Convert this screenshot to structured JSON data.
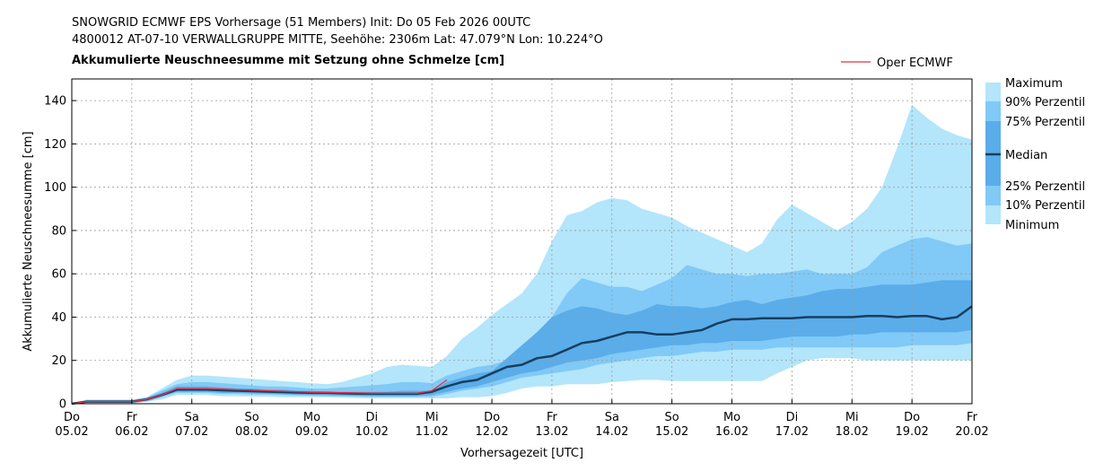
{
  "header": {
    "line1": "SNOWGRID ECMWF EPS Vorhersage (51 Members) Init: Do 05 Feb 2026 00UTC",
    "line2": "4800012 AT-07-10 VERWALLGRUPPE MITTE, Seehöhe: 2306m Lat: 47.079°N Lon: 10.224°O",
    "title": "Akkumulierte Neuschneesumme mit Setzung ohne Schmelze [cm]"
  },
  "colors": {
    "minmax": "#b3e5fb",
    "p10_90": "#81c9f6",
    "p25_75": "#5aade9",
    "median": "#173e5f",
    "oper": "#e8303c"
  },
  "legend": {
    "oper": "Oper ECMWF",
    "maximum": "Maximum",
    "p90": "90% Perzentil",
    "p75": "75% Perzentil",
    "median": "Median",
    "p25": "25% Perzentil",
    "p10": "10% Perzentil",
    "minimum": "Minimum"
  },
  "chart_data": {
    "type": "area",
    "title": "Akkumulierte Neuschneesumme mit Setzung ohne Schmelze [cm]",
    "xlabel": "Vorhersagezeit [UTC]",
    "ylabel": "Akkumulierte Neuschneesumme [cm]",
    "xlim": [
      0,
      15
    ],
    "ylim": [
      0,
      150
    ],
    "grid": true,
    "yticks": [
      0,
      20,
      40,
      60,
      80,
      100,
      120,
      140
    ],
    "xticks": [
      {
        "day": "Do",
        "date": "05.02"
      },
      {
        "day": "Fr",
        "date": "06.02"
      },
      {
        "day": "Sa",
        "date": "07.02"
      },
      {
        "day": "So",
        "date": "08.02"
      },
      {
        "day": "Mo",
        "date": "09.02"
      },
      {
        "day": "Di",
        "date": "10.02"
      },
      {
        "day": "Mi",
        "date": "11.02"
      },
      {
        "day": "Do",
        "date": "12.02"
      },
      {
        "day": "Fr",
        "date": "13.02"
      },
      {
        "day": "Sa",
        "date": "14.02"
      },
      {
        "day": "So",
        "date": "15.02"
      },
      {
        "day": "Mo",
        "date": "16.02"
      },
      {
        "day": "Di",
        "date": "17.02"
      },
      {
        "day": "Mi",
        "date": "18.02"
      },
      {
        "day": "Do",
        "date": "19.02"
      },
      {
        "day": "Fr",
        "date": "20.02"
      }
    ],
    "x_days": [
      0,
      0.25,
      0.5,
      0.75,
      1,
      1.25,
      1.5,
      1.75,
      2,
      2.25,
      2.5,
      2.75,
      3,
      3.25,
      3.5,
      3.75,
      4,
      4.25,
      4.5,
      4.75,
      5,
      5.25,
      5.5,
      5.75,
      6,
      6.25,
      6.5,
      6.75,
      7,
      7.25,
      7.5,
      7.75,
      8,
      8.25,
      8.5,
      8.75,
      9,
      9.25,
      9.5,
      9.75,
      10,
      10.25,
      10.5,
      10.75,
      11,
      11.25,
      11.5,
      11.75,
      12,
      12.25,
      12.5,
      12.75,
      13,
      13.25,
      13.5,
      13.75,
      14,
      14.25,
      14.5,
      14.75,
      15
    ],
    "series": [
      {
        "name": "Maximum",
        "values": [
          0,
          2,
          2,
          2,
          2,
          3,
          7,
          11,
          13,
          13,
          12.5,
          12,
          11.5,
          11,
          10.5,
          10,
          9.5,
          9,
          10,
          12,
          14,
          17,
          18,
          17.5,
          17,
          22,
          30,
          35,
          41,
          46,
          51,
          60,
          75,
          87,
          89,
          93,
          95,
          94,
          90,
          88,
          86,
          82,
          79,
          76,
          73,
          70,
          74,
          85,
          92,
          88,
          84,
          80,
          84,
          90,
          100,
          118,
          138,
          132,
          127,
          124,
          122
        ]
      },
      {
        "name": "90% Perzentil",
        "values": [
          0,
          1.5,
          1.5,
          1.5,
          1.5,
          3,
          6,
          9,
          10,
          10,
          9.5,
          9,
          8.5,
          8,
          8,
          7.5,
          7,
          7,
          7.5,
          8,
          8.5,
          9,
          10,
          10,
          9.5,
          13,
          15,
          17,
          18,
          20,
          25,
          32,
          40,
          51,
          58,
          56,
          54,
          54,
          52,
          55,
          58,
          64,
          62,
          60,
          60,
          59,
          60,
          60,
          61,
          62,
          60,
          60,
          60,
          63,
          70,
          73,
          76,
          77,
          75,
          73,
          74
        ]
      },
      {
        "name": "75% Perzentil",
        "values": [
          0,
          1,
          1,
          1,
          1,
          2.5,
          5,
          8,
          8,
          8,
          7.5,
          7,
          7,
          6.5,
          6.5,
          6,
          6,
          5.5,
          5.5,
          5.5,
          5.5,
          5.5,
          6,
          6,
          6,
          10,
          12,
          14,
          15,
          21,
          27,
          33,
          40,
          43,
          45,
          44,
          42,
          41,
          43,
          46,
          45,
          45,
          44,
          45,
          47,
          48,
          46,
          48,
          49,
          50,
          52,
          53,
          53,
          54,
          55,
          55,
          55,
          56,
          57,
          57,
          57
        ]
      },
      {
        "name": "Median",
        "values": [
          0,
          1,
          1,
          1,
          1,
          2,
          4,
          6.5,
          6.5,
          6.5,
          6.2,
          6,
          5.8,
          5.6,
          5.4,
          5.2,
          5,
          5,
          4.8,
          4.7,
          4.6,
          4.6,
          4.6,
          4.6,
          5.5,
          8,
          10,
          11,
          14,
          17,
          18,
          21,
          22,
          25,
          28,
          29,
          31,
          33,
          33,
          32,
          32,
          33,
          34,
          37,
          39,
          39,
          39.5,
          39.5,
          39.5,
          40,
          40,
          40,
          40,
          40.5,
          40.5,
          40,
          40.5,
          40.5,
          39,
          40,
          45
        ]
      },
      {
        "name": "25% Perzentil",
        "values": [
          0,
          0.5,
          0.5,
          0.5,
          0.5,
          1.5,
          3.5,
          5.5,
          5.5,
          5.5,
          5,
          5,
          4.8,
          4.6,
          4.4,
          4.2,
          4,
          4,
          3.8,
          3.6,
          3.5,
          3.5,
          3.5,
          3.5,
          4,
          5.5,
          7,
          8,
          10,
          12,
          14,
          15,
          17,
          19,
          20,
          21,
          23,
          24,
          25,
          26,
          27,
          27,
          28,
          28,
          29,
          29,
          29,
          30,
          31,
          31,
          31,
          31,
          32,
          32,
          33,
          33,
          33,
          33,
          33,
          33,
          34
        ]
      },
      {
        "name": "10% Perzentil",
        "values": [
          0,
          0.5,
          0.5,
          0.5,
          0.5,
          1,
          3,
          5,
          5,
          5,
          4.5,
          4.5,
          4.3,
          4.2,
          4,
          3.8,
          3.6,
          3.5,
          3.4,
          3.3,
          3.2,
          3.2,
          3.2,
          3.2,
          3.2,
          4.5,
          6,
          7,
          8,
          10,
          12,
          13,
          14,
          15,
          16,
          18,
          19,
          20,
          21,
          22,
          22,
          23,
          24,
          24,
          25,
          25,
          25,
          26,
          26,
          26,
          26,
          26,
          26,
          26,
          26,
          26,
          27,
          27,
          27,
          27,
          28
        ]
      },
      {
        "name": "Minimum",
        "values": [
          0,
          0,
          0,
          0,
          0,
          1,
          2,
          4,
          4,
          4,
          3.5,
          3.5,
          3.3,
          3.2,
          3,
          3,
          3,
          3,
          2.8,
          2.6,
          2.5,
          2.5,
          2.5,
          2.5,
          2.5,
          2.5,
          3,
          3,
          3.5,
          5,
          7,
          8,
          8,
          9,
          9,
          9,
          10,
          10.5,
          11,
          11,
          10.5,
          10.5,
          10.5,
          10.5,
          10.5,
          10.5,
          10.5,
          14,
          17,
          20,
          21,
          21,
          21,
          20,
          20,
          20,
          20,
          20,
          20,
          20,
          20
        ]
      }
    ],
    "oper": {
      "name": "Oper ECMWF",
      "x_days": [
        0,
        0.25,
        0.5,
        0.75,
        1,
        1.25,
        1.5,
        1.75,
        2,
        2.25,
        2.5,
        2.75,
        3,
        3.25,
        3.5,
        3.75,
        4,
        4.25,
        4.5,
        4.75,
        5,
        5.25,
        5.5,
        5.75,
        6,
        6.25
      ],
      "values": [
        0,
        1,
        1,
        1,
        1,
        2,
        4,
        7,
        7,
        7,
        6.8,
        6.5,
        6.3,
        6,
        5.8,
        5.5,
        5.3,
        5.2,
        5.1,
        5,
        4.9,
        4.8,
        4.8,
        4.8,
        6,
        11
      ]
    }
  }
}
